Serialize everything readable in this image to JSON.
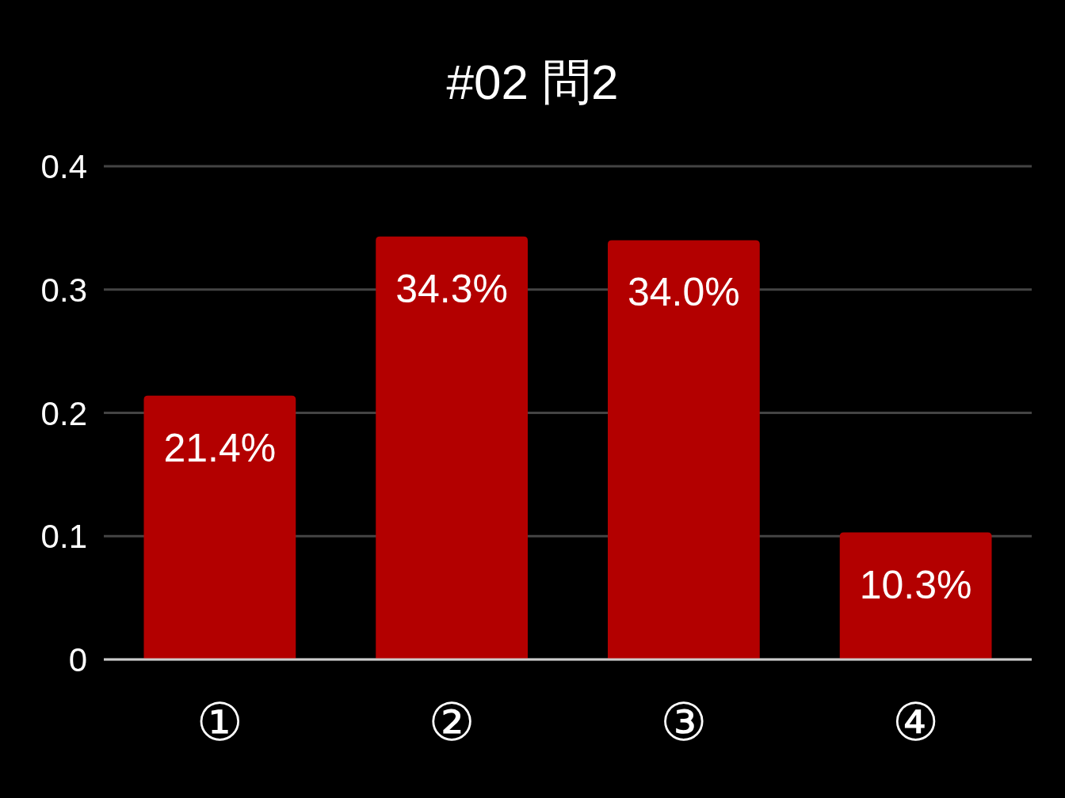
{
  "chart_data": {
    "type": "bar",
    "title": "#02 問2",
    "categories": [
      "①",
      "②",
      "③",
      "④"
    ],
    "values": [
      0.214,
      0.343,
      0.34,
      0.103
    ],
    "value_labels": [
      "21.4%",
      "34.3%",
      "34.0%",
      "10.3%"
    ],
    "color": "#b30000",
    "ylim": [
      0,
      0.4
    ],
    "yticks": [
      0,
      0.1,
      0.2,
      0.3,
      0.4
    ],
    "grid": "y"
  }
}
